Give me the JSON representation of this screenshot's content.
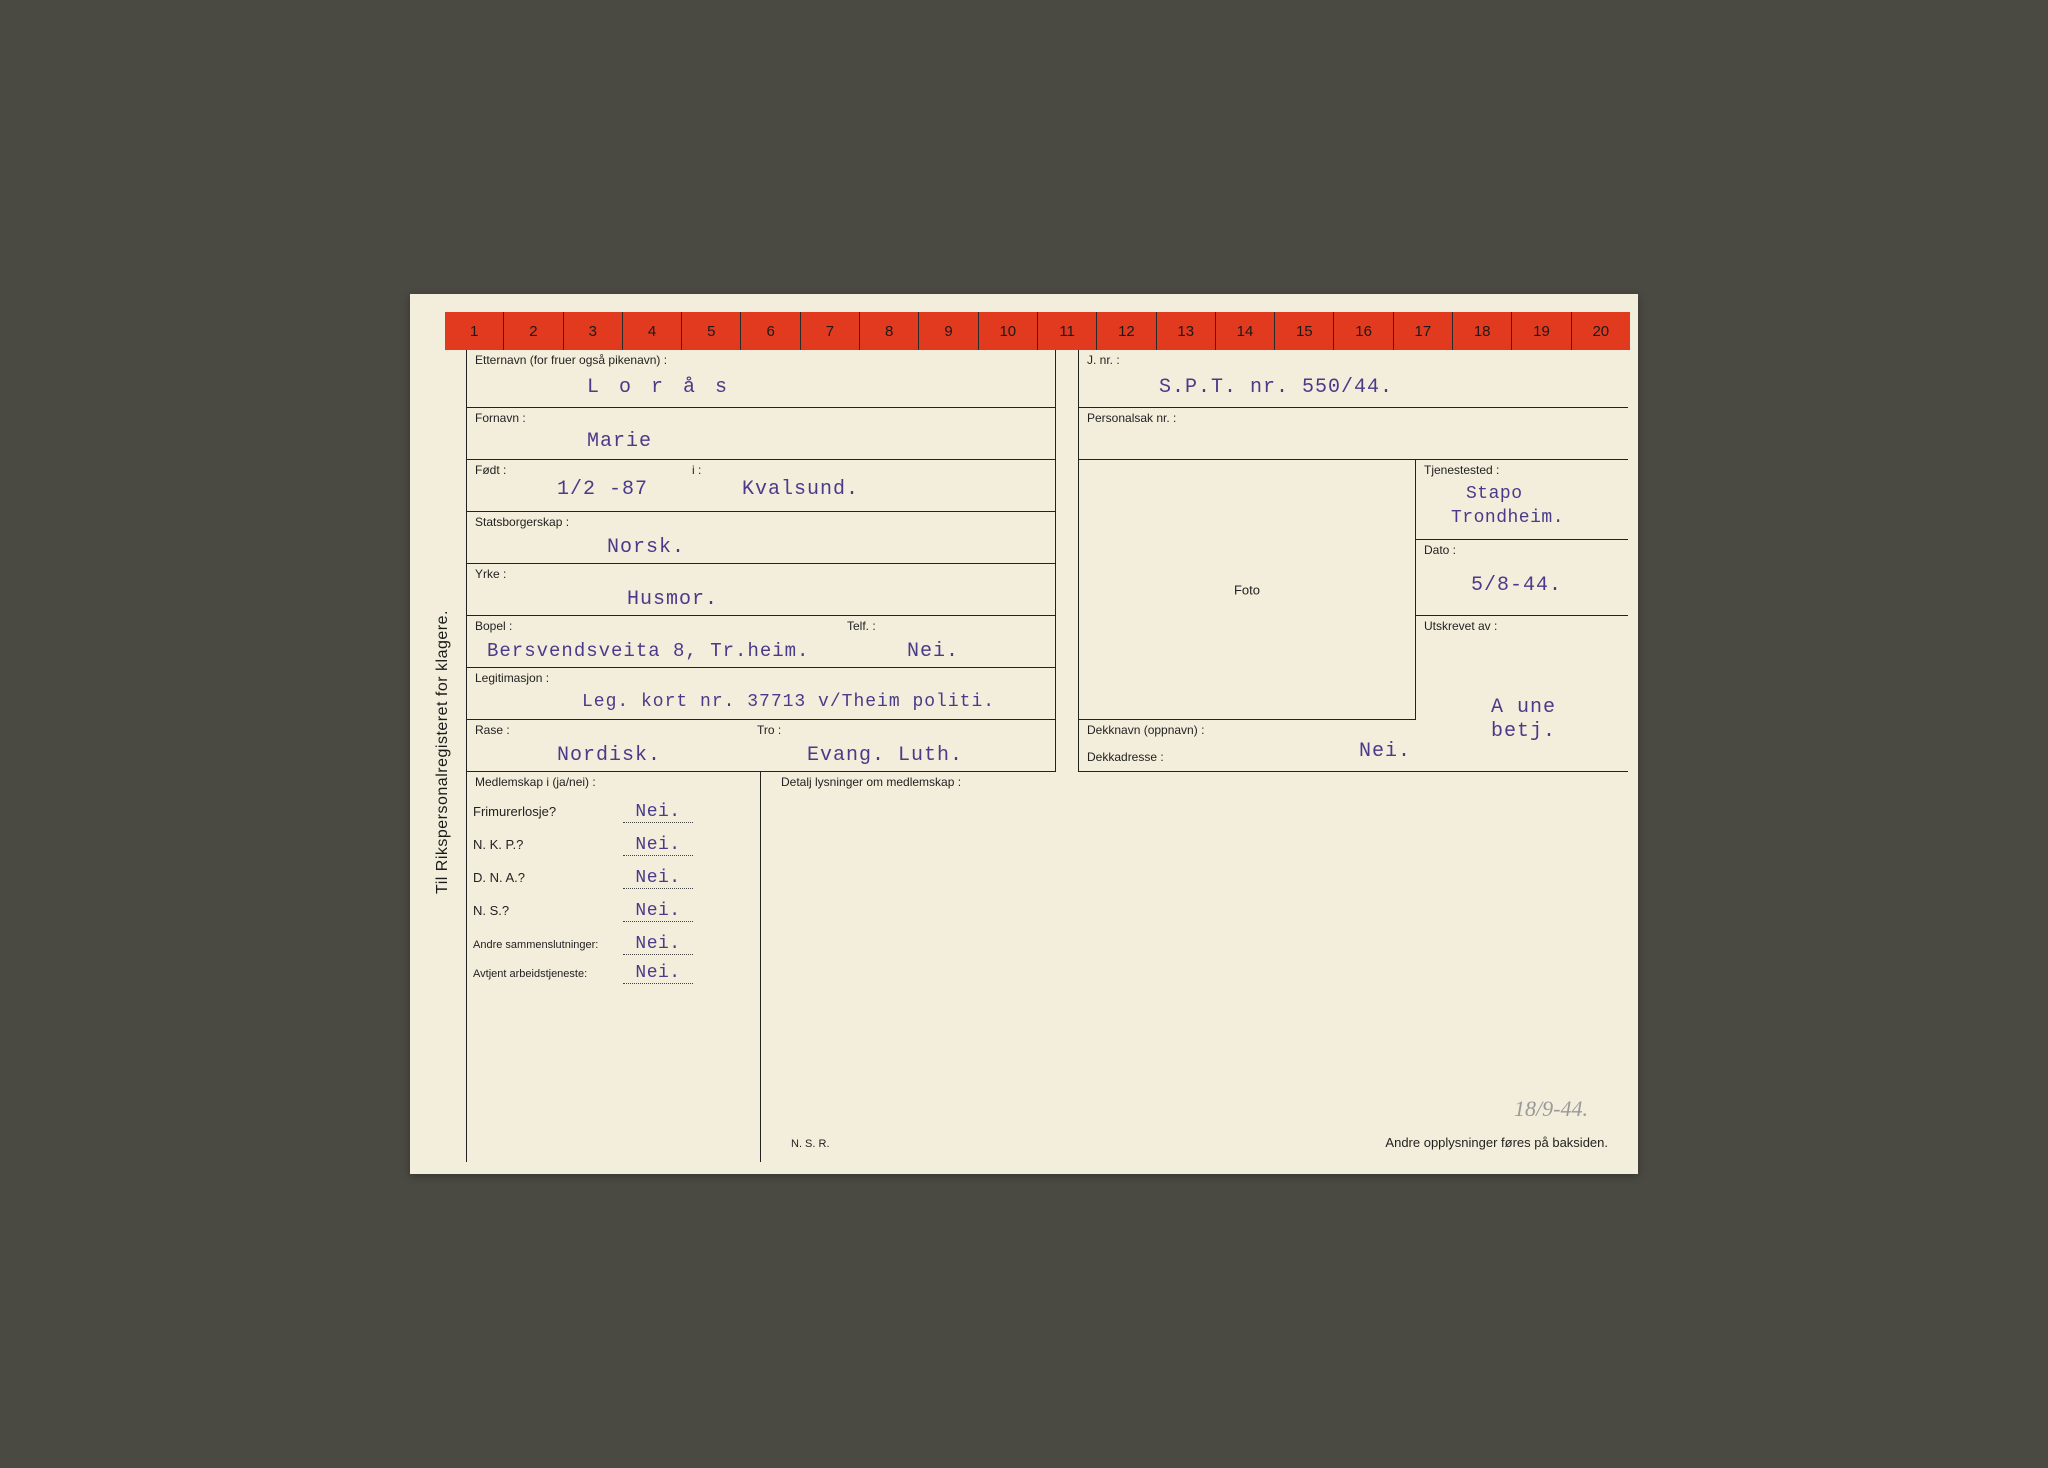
{
  "ruler": [
    "1",
    "2",
    "3",
    "4",
    "5",
    "6",
    "7",
    "8",
    "9",
    "10",
    "11",
    "12",
    "13",
    "14",
    "15",
    "16",
    "17",
    "18",
    "19",
    "20"
  ],
  "sideText": "Til Rikspersonalregisteret for klagere.",
  "labels": {
    "etternavn": "Etternavn (for fruer også pikenavn) :",
    "fornavn": "Fornavn :",
    "fodt": "Født :",
    "fodt_i": "i :",
    "statsborgerskap": "Statsborgerskap :",
    "yrke": "Yrke :",
    "bopel": "Bopel :",
    "telf": "Telf. :",
    "legitimasjon": "Legitimasjon :",
    "rase": "Rase :",
    "tro": "Tro :",
    "jnr": "J. nr. :",
    "personalsak": "Personalsak nr. :",
    "tjenestested": "Tjenestested :",
    "dato": "Dato :",
    "utskrevet": "Utskrevet av :",
    "foto": "Foto",
    "dekknavn": "Dekknavn (oppnavn) :",
    "dekkadresse": "Dekkadresse :",
    "medlemskap": "Medlemskap i (ja/nei) :",
    "detalj": "Detalj    lysninger om medlemskap :",
    "frimurer": "Frimurerlosje?",
    "nkp": "N. K. P.?",
    "dna": "D. N. A.?",
    "ns": "N. S.?",
    "andre": "Andre sammenslutninger:",
    "avtjent": "Avtjent arbeidstjeneste:",
    "nsr": "N. S. R.",
    "andre_opp": "Andre opplysninger føres på baksiden."
  },
  "values": {
    "etternavn": "L o r å s",
    "fornavn": "Marie",
    "fodt": "1/2 -87",
    "fodt_i": "Kvalsund.",
    "statsborgerskap": "Norsk.",
    "yrke": "Husmor.",
    "bopel": "Bersvendsveita 8, Tr.heim.",
    "telf": "Nei.",
    "legitimasjon": "Leg. kort nr. 37713 v/Theim politi.",
    "rase": "Nordisk.",
    "tro": "Evang. Luth.",
    "jnr": "S.P.T. nr. 550/44.",
    "tjenestested1": "Stapo",
    "tjenestested2": "Trondheim.",
    "dato": "5/8-44.",
    "utskrevet1": "A une",
    "utskrevet2": "betj.",
    "dekknavn": "Nei.",
    "frimurer": "Nei.",
    "nkp": "Nei.",
    "dna": "Nei.",
    "ns": "Nei.",
    "andre": "Nei.",
    "avtjent": "Nei."
  },
  "pencil": "18/9-44."
}
